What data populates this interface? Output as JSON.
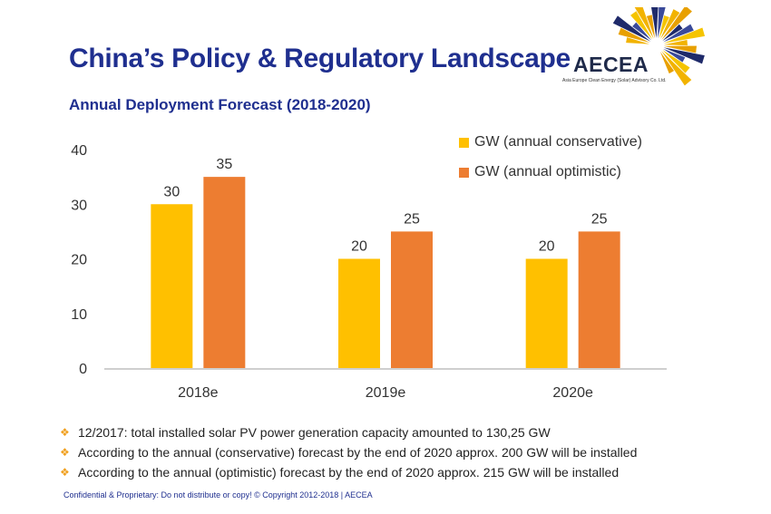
{
  "header": {
    "title": "China’s Policy & Regulatory Landscape",
    "subtitle": "Annual Deployment Forecast (2018-2020)"
  },
  "logo": {
    "name": "AECEA",
    "tagline": "Asia Europe Clean Energy (Solar) Advisory Co. Ltd."
  },
  "chart_data": {
    "type": "bar",
    "title": "Annual Deployment Forecast (2018-2020)",
    "categories": [
      "2018e",
      "2019e",
      "2020e"
    ],
    "series": [
      {
        "name": "GW (annual conservative)",
        "values": [
          30,
          20,
          20
        ],
        "color": "#ffc000"
      },
      {
        "name": "GW (annual optimistic)",
        "values": [
          35,
          25,
          25
        ],
        "color": "#ed7d31"
      }
    ],
    "ylim": [
      0,
      40
    ],
    "yticks": [
      0,
      10,
      20,
      30,
      40
    ],
    "grid": false,
    "legend": "top-right",
    "data_labels": true
  },
  "notes": [
    "12/2017: total installed solar PV power generation capacity amounted to 130,25 GW",
    "According to the annual (conservative)  forecast by the end of 2020 approx. 200 GW will be installed",
    "According to the annual (optimistic) forecast by the end of 2020 approx. 215 GW will be installed"
  ],
  "note_bullet": "❖",
  "footer": "Confidential & Proprietary: Do not distribute or copy! © Copyright 2012-2018 | AECEA"
}
